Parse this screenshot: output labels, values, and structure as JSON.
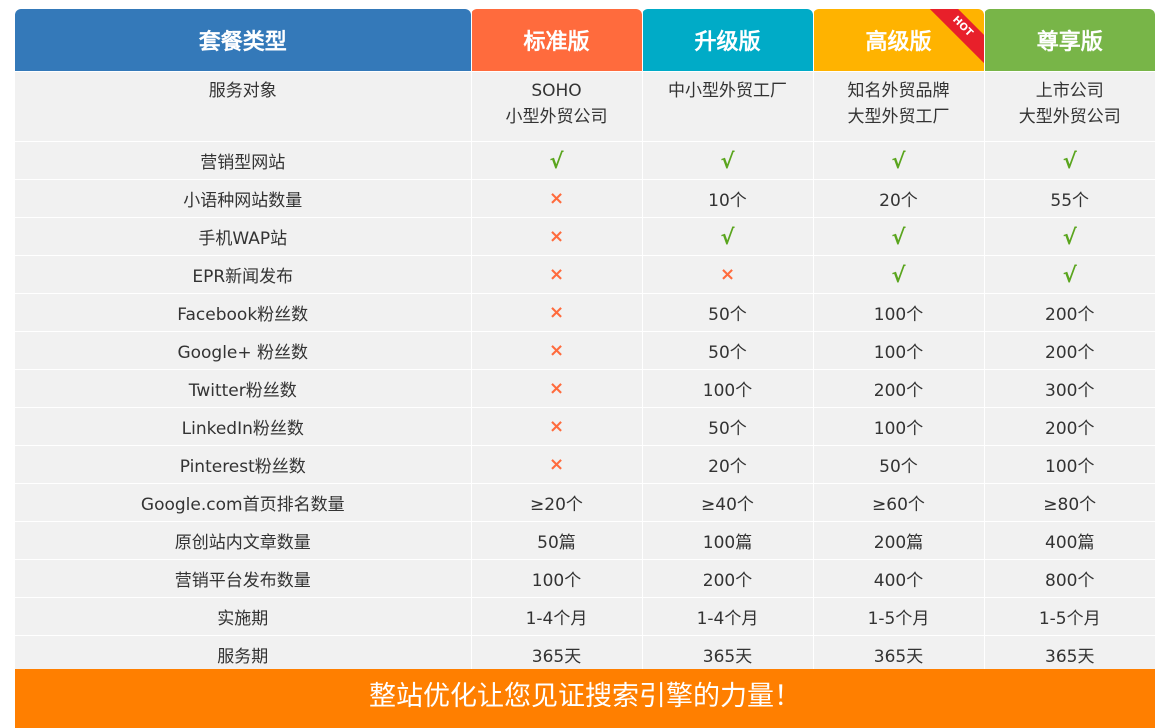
{
  "table": {
    "headers": [
      {
        "label": "套餐类型"
      },
      {
        "label": "标准版"
      },
      {
        "label": "升级版"
      },
      {
        "label": "高级版",
        "badge": "HOT"
      },
      {
        "label": "尊享版"
      }
    ],
    "rows": [
      {
        "feature": "服务对象",
        "cells": [
          [
            "SOHO",
            "小型外贸公司"
          ],
          [
            "中小型外贸工厂"
          ],
          [
            "知名外贸品牌",
            "大型外贸工厂"
          ],
          [
            "上市公司",
            "大型外贸公司"
          ]
        ]
      },
      {
        "feature": "营销型网站",
        "cells": [
          "√",
          "√",
          "√",
          "√"
        ]
      },
      {
        "feature": "小语种网站数量",
        "cells": [
          "×",
          "10个",
          "20个",
          "55个"
        ]
      },
      {
        "feature": "手机WAP站",
        "cells": [
          "×",
          "√",
          "√",
          "√"
        ]
      },
      {
        "feature": "EPR新闻发布",
        "cells": [
          "×",
          "×",
          "√",
          "√"
        ]
      },
      {
        "feature": "Facebook粉丝数",
        "cells": [
          "×",
          "50个",
          "100个",
          "200个"
        ]
      },
      {
        "feature": "Google+ 粉丝数",
        "cells": [
          "×",
          "50个",
          "100个",
          "200个"
        ]
      },
      {
        "feature": "Twitter粉丝数",
        "cells": [
          "×",
          "100个",
          "200个",
          "300个"
        ]
      },
      {
        "feature": "LinkedIn粉丝数",
        "cells": [
          "×",
          "50个",
          "100个",
          "200个"
        ]
      },
      {
        "feature": "Pinterest粉丝数",
        "cells": [
          "×",
          "20个",
          "50个",
          "100个"
        ]
      },
      {
        "feature": "Google.com首页排名数量",
        "cells": [
          "≥20个",
          "≥40个",
          "≥60个",
          "≥80个"
        ]
      },
      {
        "feature": "原创站内文章数量",
        "cells": [
          "50篇",
          "100篇",
          "200篇",
          "400篇"
        ]
      },
      {
        "feature": "营销平台发布数量",
        "cells": [
          "100个",
          "200个",
          "400个",
          "800个"
        ]
      },
      {
        "feature": "实施期",
        "cells": [
          "1-4个月",
          "1-4个月",
          "1-5个月",
          "1-5个月"
        ]
      },
      {
        "feature": "服务期",
        "cells": [
          "365天",
          "365天",
          "365天",
          "365天"
        ]
      }
    ]
  },
  "footer": {
    "text": "整站优化让您见证搜索引擎的力量！"
  },
  "colors": {
    "header_type": "#3479b9",
    "header_standard": "#ff6b3d",
    "header_upgrade": "#00abc7",
    "header_advanced": "#ffb300",
    "header_premium": "#78b548",
    "hot_badge": "#e8202a",
    "check": "#5aa51e",
    "cross": "#ff6b3d",
    "footer_bg": "#ff7f00"
  }
}
